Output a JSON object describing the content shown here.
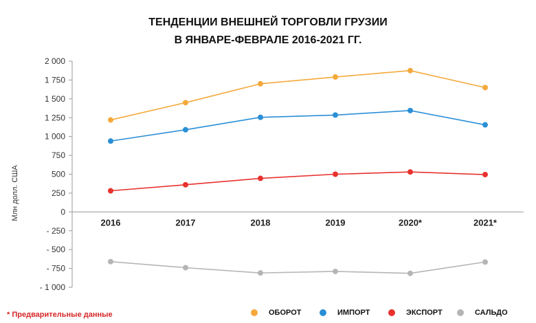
{
  "title_line1": "ТЕНДЕНЦИИ ВНЕШНЕЙ ТОРГОВЛИ ГРУЗИИ",
  "title_line2": "В ЯНВАРЕ-ФЕВРАЛЕ 2016-2021 ГГ.",
  "note": "* Предварительные данные",
  "chart_data": {
    "type": "line",
    "ylabel": "Млн долл. США",
    "categories": [
      "2016",
      "2017",
      "2018",
      "2019",
      "2020*",
      "2021*"
    ],
    "ylim": [
      -1000,
      2000
    ],
    "yticks": [
      2000,
      1750,
      1500,
      1250,
      1000,
      750,
      500,
      250,
      0,
      -250,
      -500,
      -750,
      -1000
    ],
    "ytick_labels": [
      "2 000",
      "1 750",
      "1 500",
      "1 250",
      "1 000",
      "750",
      "500",
      "250",
      "0",
      "- 250",
      "- 500",
      "- 750",
      "- 1 000"
    ],
    "grid": false,
    "legend_position": "bottom",
    "series": [
      {
        "name": "ОБОРОТ",
        "color": "#f4a93c",
        "values": [
          1220,
          1450,
          1700,
          1790,
          1875,
          1650
        ]
      },
      {
        "name": "ИМПОРТ",
        "color": "#2a8fd6",
        "values": [
          940,
          1090,
          1255,
          1285,
          1345,
          1155
        ]
      },
      {
        "name": "ЭКСПОРТ",
        "color": "#e8322e",
        "values": [
          280,
          360,
          445,
          500,
          530,
          495
        ]
      },
      {
        "name": "САЛЬДО",
        "color": "#b5b5b5",
        "values": [
          -660,
          -740,
          -810,
          -790,
          -815,
          -665
        ]
      }
    ]
  }
}
